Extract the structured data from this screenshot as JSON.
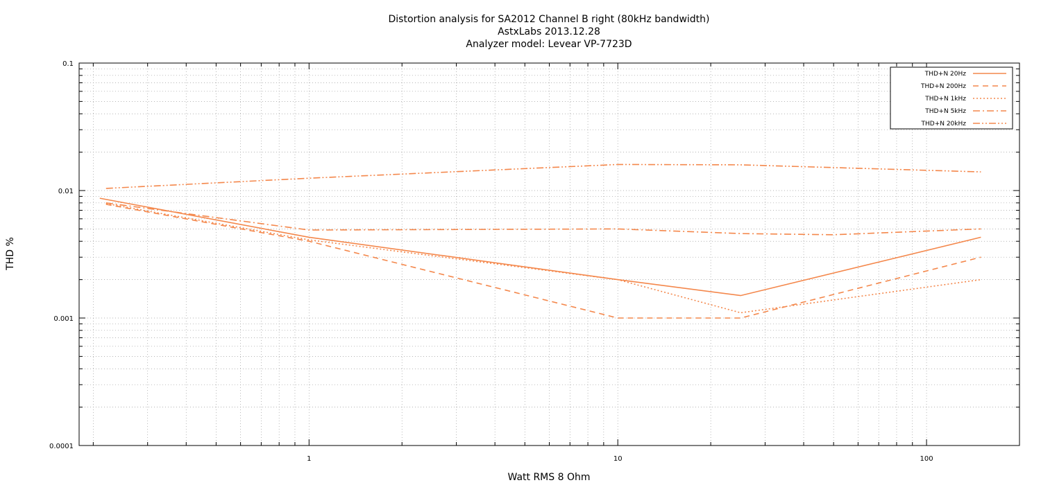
{
  "chart_data": {
    "type": "line",
    "title": [
      "Distortion analysis for SA2012 Channel B right (80kHz bandwidth)",
      "AstxLabs 2013.12.28",
      "Analyzer model: Levear VP-7723D"
    ],
    "xlabel": "Watt RMS 8 Ohm",
    "ylabel": "THD %",
    "xscale": "log",
    "yscale": "log",
    "xlim": [
      0.18,
      200
    ],
    "ylim": [
      0.0001,
      0.1
    ],
    "xticks": [
      1,
      10,
      100
    ],
    "xtick_labels": [
      "1",
      "10",
      "100"
    ],
    "yticks": [
      0.0001,
      0.001,
      0.01,
      0.1
    ],
    "ytick_labels": [
      "0.0001",
      "0.001",
      "0.01",
      "0.1"
    ],
    "grid": true,
    "legend_position": "top-right",
    "series_color": "#f4874b",
    "series": [
      {
        "name": "THD+N 20Hz",
        "dash": "solid",
        "x": [
          0.21,
          1,
          10,
          25,
          150
        ],
        "y": [
          0.0087,
          0.0043,
          0.002,
          0.0015,
          0.0043
        ]
      },
      {
        "name": "THD+N 200Hz",
        "dash": "dashed",
        "x": [
          0.22,
          1,
          10,
          25,
          150
        ],
        "y": [
          0.0078,
          0.004,
          0.001,
          0.001,
          0.003
        ]
      },
      {
        "name": "THD+N 1kHz",
        "dash": "dotted",
        "x": [
          0.22,
          1,
          10,
          25,
          150
        ],
        "y": [
          0.0079,
          0.0041,
          0.002,
          0.0011,
          0.002
        ]
      },
      {
        "name": "THD+N 5kHz",
        "dash": "dashdot",
        "x": [
          0.22,
          1,
          10,
          25,
          50,
          150
        ],
        "y": [
          0.008,
          0.0049,
          0.005,
          0.0046,
          0.0045,
          0.005
        ]
      },
      {
        "name": "THD+N 20kHz",
        "dash": "dashdotdot",
        "x": [
          0.22,
          1,
          10,
          25,
          150
        ],
        "y": [
          0.0104,
          0.0125,
          0.016,
          0.0159,
          0.014
        ]
      }
    ]
  }
}
